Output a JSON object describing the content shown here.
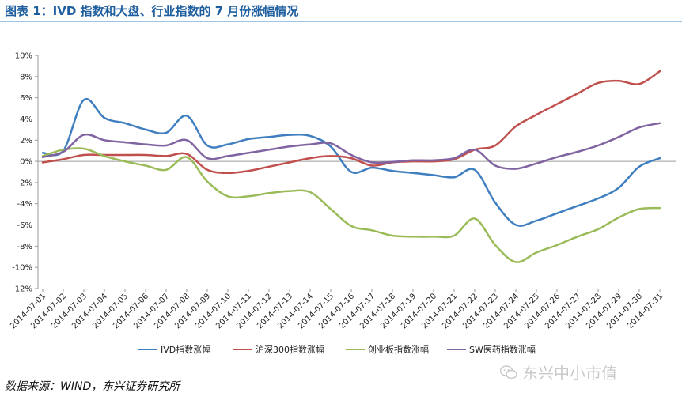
{
  "title": "图表 1：IVD 指数和大盘、行业指数的 7 月份涨幅情况",
  "source": "数据来源：WIND，东兴证券研究所",
  "watermark": "东兴中小市值",
  "chart_data": {
    "type": "line",
    "title": "",
    "xlabel": "",
    "ylabel": "",
    "ylim": [
      -12,
      10
    ],
    "yticks": [
      10,
      8,
      6,
      4,
      2,
      0,
      -2,
      -4,
      -6,
      -8,
      -10,
      -12
    ],
    "ytick_labels": [
      "10%",
      "8%",
      "6%",
      "4%",
      "2%",
      "0%",
      "-2%",
      "-4%",
      "-6%",
      "-8%",
      "-10%",
      "-12%"
    ],
    "grid": false,
    "legend_position": "bottom",
    "categories": [
      "2014-07-01",
      "2014-07-02",
      "2014-07-03",
      "2014-07-04",
      "2014-07-05",
      "2014-07-06",
      "2014-07-07",
      "2014-07-08",
      "2014-07-09",
      "2014-07-10",
      "2014-07-11",
      "2014-07-12",
      "2014-07-13",
      "2014-07-14",
      "2014-07-15",
      "2014-07-16",
      "2014-07-17",
      "2014-07-18",
      "2014-07-19",
      "2014-07-20",
      "2014-07-21",
      "2014-07-22",
      "2014-07-23",
      "2014-07-24",
      "2014-07-25",
      "2014-07-26",
      "2014-07-27",
      "2014-07-28",
      "2014-07-29",
      "2014-07-30",
      "2014-07-31"
    ],
    "series": [
      {
        "name": "IVD指数涨幅",
        "color": "#3f7fbf",
        "values": [
          0.8,
          1.0,
          5.8,
          4.1,
          3.6,
          3.0,
          2.7,
          4.3,
          1.5,
          1.6,
          2.1,
          2.3,
          2.5,
          2.4,
          1.4,
          -1.0,
          -0.6,
          -0.9,
          -1.1,
          -1.3,
          -1.5,
          -0.8,
          -3.9,
          -6.0,
          -5.6,
          -4.9,
          -4.2,
          -3.5,
          -2.5,
          -0.5,
          0.3
        ]
      },
      {
        "name": "沪深300指数涨幅",
        "color": "#c0504d",
        "values": [
          -0.1,
          0.2,
          0.6,
          0.6,
          0.6,
          0.6,
          0.5,
          0.7,
          -0.8,
          -1.1,
          -0.9,
          -0.5,
          -0.1,
          0.3,
          0.5,
          0.3,
          -0.4,
          -0.1,
          0.0,
          0.0,
          0.2,
          1.1,
          1.5,
          3.3,
          4.4,
          5.4,
          6.4,
          7.4,
          7.6,
          7.3,
          8.5
        ]
      },
      {
        "name": "创业板指数涨幅",
        "color": "#9bbb59",
        "values": [
          0.5,
          1.1,
          1.2,
          0.5,
          0.0,
          -0.4,
          -0.8,
          0.4,
          -1.9,
          -3.3,
          -3.3,
          -3.0,
          -2.8,
          -2.9,
          -4.5,
          -6.1,
          -6.5,
          -7.0,
          -7.1,
          -7.1,
          -7.0,
          -5.4,
          -7.9,
          -9.5,
          -8.6,
          -7.9,
          -7.1,
          -6.4,
          -5.3,
          -4.5,
          -4.4
        ]
      },
      {
        "name": "SW医药指数涨幅",
        "color": "#8064a2",
        "values": [
          0.4,
          0.9,
          2.5,
          2.0,
          1.8,
          1.6,
          1.5,
          2.0,
          0.3,
          0.5,
          0.8,
          1.1,
          1.4,
          1.6,
          1.7,
          0.6,
          -0.1,
          -0.05,
          0.1,
          0.1,
          0.3,
          1.1,
          -0.4,
          -0.7,
          -0.2,
          0.4,
          0.9,
          1.5,
          2.3,
          3.2,
          3.6
        ]
      }
    ]
  }
}
